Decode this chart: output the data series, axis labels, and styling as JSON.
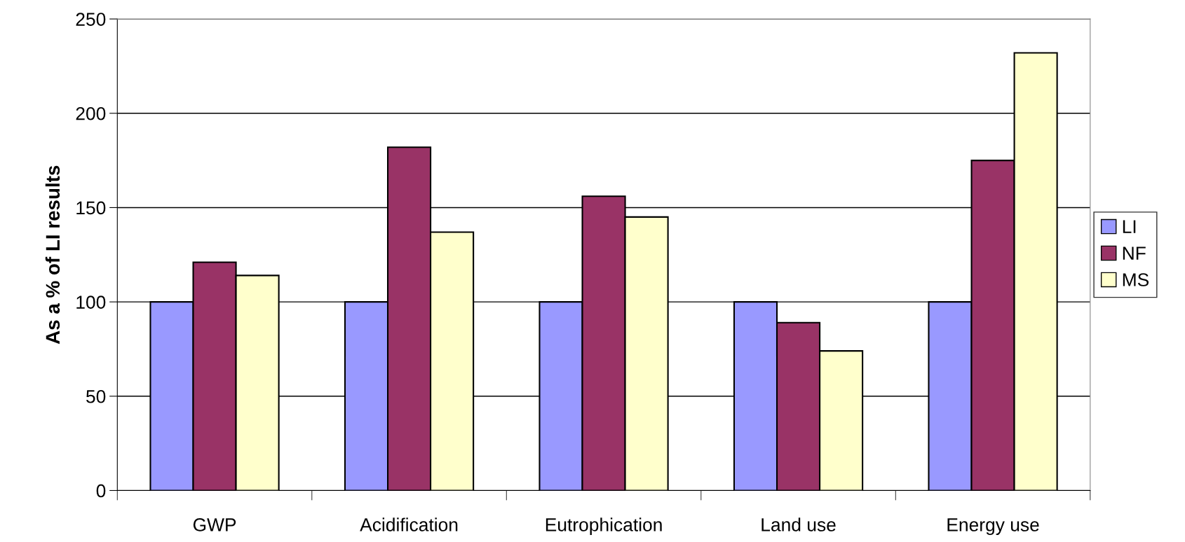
{
  "chart_data": {
    "type": "bar",
    "ylabel": "As a % of LI results",
    "categories": [
      "GWP",
      "Acidification",
      "Eutrophication",
      "Land use",
      "Energy use"
    ],
    "series": [
      {
        "name": "LI",
        "color": "#9999ff",
        "values": [
          100,
          100,
          100,
          100,
          100
        ]
      },
      {
        "name": "NF",
        "color": "#993366",
        "values": [
          121,
          182,
          156,
          89,
          175
        ]
      },
      {
        "name": "MS",
        "color": "#ffffcc",
        "values": [
          114,
          137,
          145,
          74,
          232
        ]
      }
    ],
    "ylim": [
      0,
      250
    ],
    "yticks": [
      0,
      50,
      100,
      150,
      200,
      250
    ],
    "grid": "y",
    "legend": "right"
  }
}
